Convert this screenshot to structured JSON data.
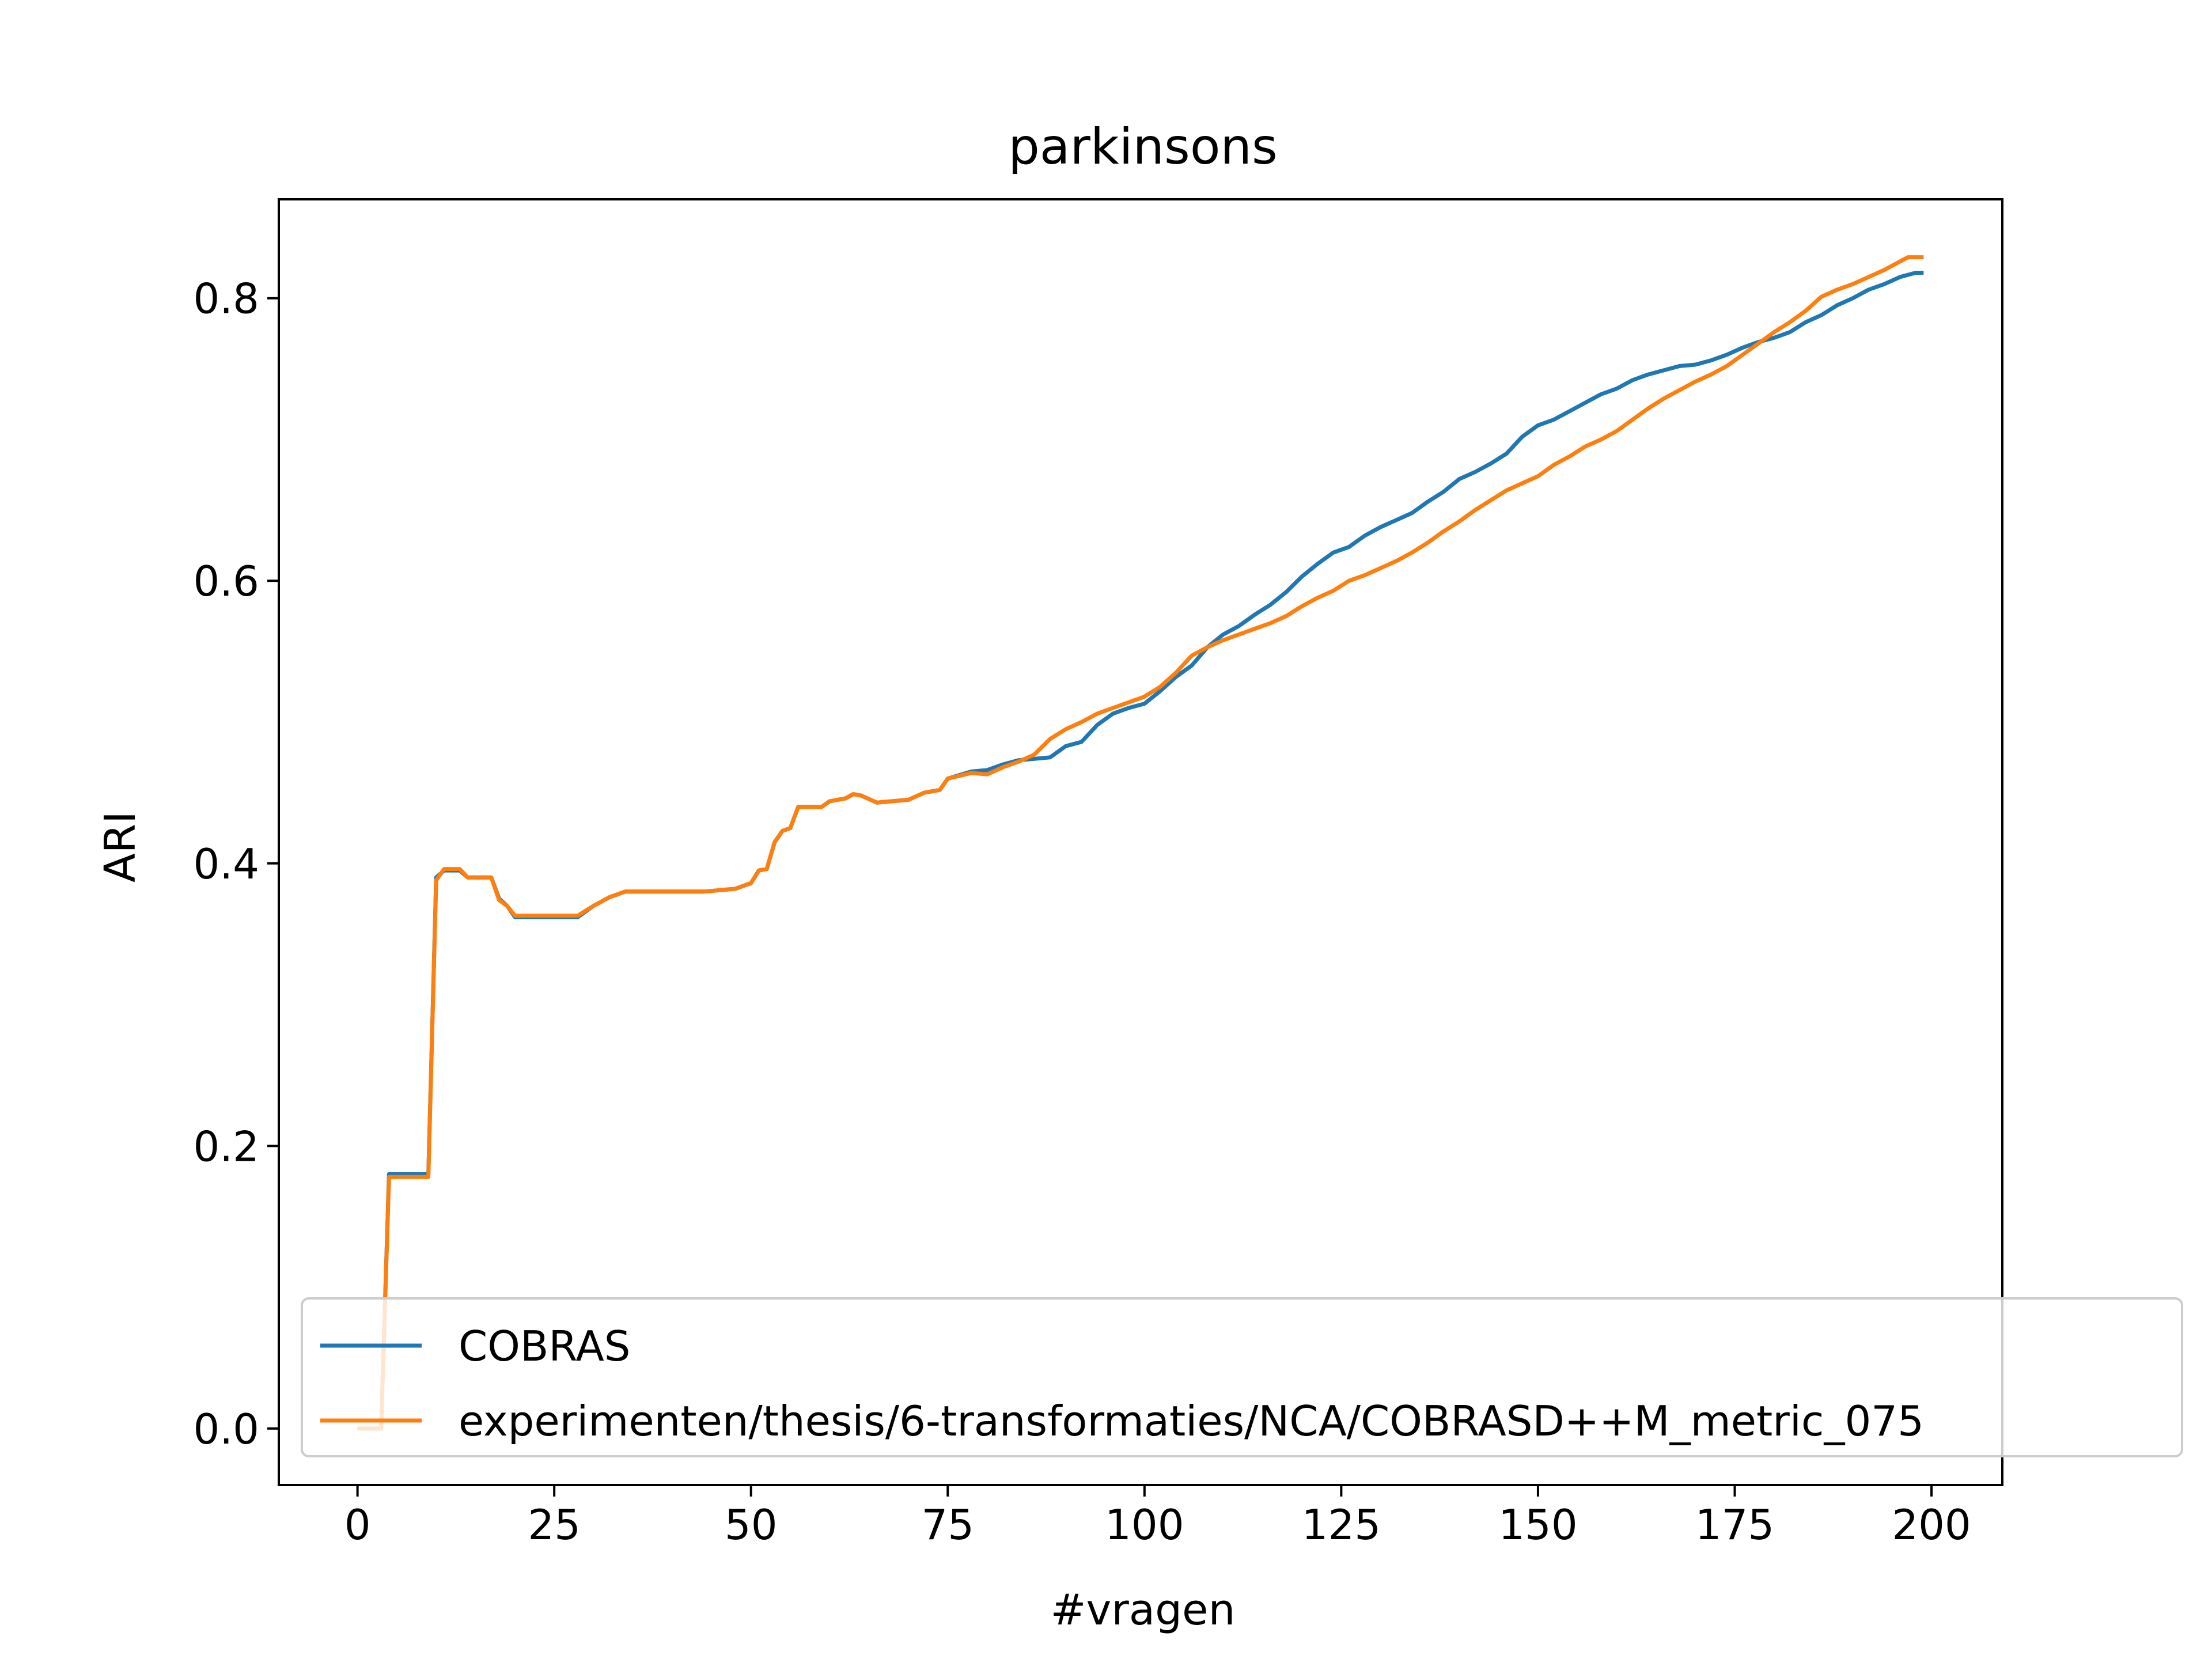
{
  "chart_data": {
    "type": "line",
    "title": "parkinsons",
    "xlabel": "#vragen",
    "ylabel": "ARI",
    "xlim": [
      -10,
      209
    ],
    "ylim": [
      -0.04,
      0.87
    ],
    "xticks": [
      0,
      25,
      50,
      75,
      100,
      125,
      150,
      175,
      200
    ],
    "xtick_labels": [
      "0",
      "25",
      "50",
      "75",
      "100",
      "125",
      "150",
      "175",
      "200"
    ],
    "yticks": [
      0.0,
      0.2,
      0.4,
      0.6,
      0.8
    ],
    "ytick_labels": [
      "0.0",
      "0.2",
      "0.4",
      "0.6",
      "0.8"
    ],
    "grid": false,
    "legend_position": "lower-left",
    "series": [
      {
        "name": "COBRAS",
        "color": "#1f77b4",
        "points": [
          [
            0,
            0.0
          ],
          [
            3,
            0.0
          ],
          [
            4,
            0.18
          ],
          [
            9,
            0.18
          ],
          [
            10,
            0.39
          ],
          [
            11,
            0.395
          ],
          [
            13,
            0.395
          ],
          [
            14,
            0.39
          ],
          [
            17,
            0.39
          ],
          [
            18,
            0.375
          ],
          [
            19,
            0.37
          ],
          [
            20,
            0.362
          ],
          [
            28,
            0.362
          ],
          [
            30,
            0.37
          ],
          [
            32,
            0.376
          ],
          [
            34,
            0.38
          ],
          [
            44,
            0.38
          ],
          [
            48,
            0.382
          ],
          [
            50,
            0.386
          ],
          [
            51,
            0.395
          ],
          [
            52,
            0.396
          ],
          [
            53,
            0.415
          ],
          [
            54,
            0.423
          ],
          [
            55,
            0.425
          ],
          [
            56,
            0.44
          ],
          [
            59,
            0.44
          ],
          [
            60,
            0.444
          ],
          [
            62,
            0.446
          ],
          [
            63,
            0.449
          ],
          [
            64,
            0.448
          ],
          [
            66,
            0.443
          ],
          [
            70,
            0.445
          ],
          [
            72,
            0.45
          ],
          [
            74,
            0.452
          ],
          [
            75,
            0.46
          ],
          [
            78,
            0.465
          ],
          [
            80,
            0.466
          ],
          [
            82,
            0.47
          ],
          [
            84,
            0.473
          ],
          [
            86,
            0.474
          ],
          [
            88,
            0.475
          ],
          [
            90,
            0.483
          ],
          [
            92,
            0.486
          ],
          [
            94,
            0.498
          ],
          [
            96,
            0.506
          ],
          [
            98,
            0.51
          ],
          [
            100,
            0.513
          ],
          [
            102,
            0.522
          ],
          [
            104,
            0.532
          ],
          [
            106,
            0.54
          ],
          [
            108,
            0.553
          ],
          [
            110,
            0.562
          ],
          [
            112,
            0.568
          ],
          [
            114,
            0.576
          ],
          [
            116,
            0.583
          ],
          [
            118,
            0.592
          ],
          [
            120,
            0.603
          ],
          [
            122,
            0.612
          ],
          [
            124,
            0.62
          ],
          [
            126,
            0.624
          ],
          [
            128,
            0.632
          ],
          [
            130,
            0.638
          ],
          [
            132,
            0.643
          ],
          [
            134,
            0.648
          ],
          [
            136,
            0.656
          ],
          [
            138,
            0.663
          ],
          [
            140,
            0.672
          ],
          [
            142,
            0.677
          ],
          [
            144,
            0.683
          ],
          [
            146,
            0.69
          ],
          [
            148,
            0.702
          ],
          [
            150,
            0.71
          ],
          [
            152,
            0.714
          ],
          [
            154,
            0.72
          ],
          [
            156,
            0.726
          ],
          [
            158,
            0.732
          ],
          [
            160,
            0.736
          ],
          [
            162,
            0.742
          ],
          [
            164,
            0.746
          ],
          [
            166,
            0.749
          ],
          [
            168,
            0.752
          ],
          [
            170,
            0.753
          ],
          [
            172,
            0.756
          ],
          [
            174,
            0.76
          ],
          [
            176,
            0.765
          ],
          [
            178,
            0.769
          ],
          [
            180,
            0.772
          ],
          [
            182,
            0.776
          ],
          [
            184,
            0.783
          ],
          [
            186,
            0.788
          ],
          [
            188,
            0.795
          ],
          [
            190,
            0.8
          ],
          [
            192,
            0.806
          ],
          [
            194,
            0.81
          ],
          [
            196,
            0.815
          ],
          [
            198,
            0.818
          ],
          [
            199,
            0.818
          ]
        ]
      },
      {
        "name": "experimenten/thesis/6-transformaties/NCA/COBRASD++M_metric_075",
        "color": "#ff7f0e",
        "points": [
          [
            0,
            0.0
          ],
          [
            3,
            0.0
          ],
          [
            4,
            0.178
          ],
          [
            9,
            0.178
          ],
          [
            10,
            0.388
          ],
          [
            11,
            0.396
          ],
          [
            13,
            0.396
          ],
          [
            14,
            0.39
          ],
          [
            17,
            0.39
          ],
          [
            18,
            0.374
          ],
          [
            19,
            0.37
          ],
          [
            20,
            0.363
          ],
          [
            28,
            0.363
          ],
          [
            30,
            0.37
          ],
          [
            32,
            0.376
          ],
          [
            34,
            0.38
          ],
          [
            44,
            0.38
          ],
          [
            48,
            0.382
          ],
          [
            50,
            0.386
          ],
          [
            51,
            0.395
          ],
          [
            52,
            0.396
          ],
          [
            53,
            0.415
          ],
          [
            54,
            0.423
          ],
          [
            55,
            0.425
          ],
          [
            56,
            0.44
          ],
          [
            59,
            0.44
          ],
          [
            60,
            0.444
          ],
          [
            62,
            0.446
          ],
          [
            63,
            0.449
          ],
          [
            64,
            0.448
          ],
          [
            66,
            0.443
          ],
          [
            70,
            0.445
          ],
          [
            72,
            0.45
          ],
          [
            74,
            0.452
          ],
          [
            75,
            0.46
          ],
          [
            78,
            0.464
          ],
          [
            80,
            0.463
          ],
          [
            82,
            0.468
          ],
          [
            84,
            0.472
          ],
          [
            86,
            0.477
          ],
          [
            88,
            0.488
          ],
          [
            90,
            0.495
          ],
          [
            92,
            0.5
          ],
          [
            94,
            0.506
          ],
          [
            96,
            0.51
          ],
          [
            98,
            0.514
          ],
          [
            100,
            0.518
          ],
          [
            102,
            0.525
          ],
          [
            104,
            0.535
          ],
          [
            106,
            0.547
          ],
          [
            108,
            0.553
          ],
          [
            110,
            0.558
          ],
          [
            112,
            0.562
          ],
          [
            114,
            0.566
          ],
          [
            116,
            0.57
          ],
          [
            118,
            0.575
          ],
          [
            120,
            0.582
          ],
          [
            122,
            0.588
          ],
          [
            124,
            0.593
          ],
          [
            126,
            0.6
          ],
          [
            128,
            0.604
          ],
          [
            130,
            0.609
          ],
          [
            132,
            0.614
          ],
          [
            134,
            0.62
          ],
          [
            136,
            0.627
          ],
          [
            138,
            0.635
          ],
          [
            140,
            0.642
          ],
          [
            142,
            0.65
          ],
          [
            144,
            0.657
          ],
          [
            146,
            0.664
          ],
          [
            148,
            0.669
          ],
          [
            150,
            0.674
          ],
          [
            152,
            0.682
          ],
          [
            154,
            0.688
          ],
          [
            156,
            0.695
          ],
          [
            158,
            0.7
          ],
          [
            160,
            0.706
          ],
          [
            162,
            0.714
          ],
          [
            164,
            0.722
          ],
          [
            166,
            0.729
          ],
          [
            168,
            0.735
          ],
          [
            170,
            0.741
          ],
          [
            172,
            0.746
          ],
          [
            174,
            0.752
          ],
          [
            176,
            0.76
          ],
          [
            178,
            0.768
          ],
          [
            180,
            0.776
          ],
          [
            182,
            0.783
          ],
          [
            184,
            0.791
          ],
          [
            186,
            0.801
          ],
          [
            188,
            0.806
          ],
          [
            190,
            0.81
          ],
          [
            192,
            0.815
          ],
          [
            194,
            0.82
          ],
          [
            196,
            0.826
          ],
          [
            197,
            0.829
          ],
          [
            199,
            0.829
          ]
        ]
      }
    ]
  }
}
